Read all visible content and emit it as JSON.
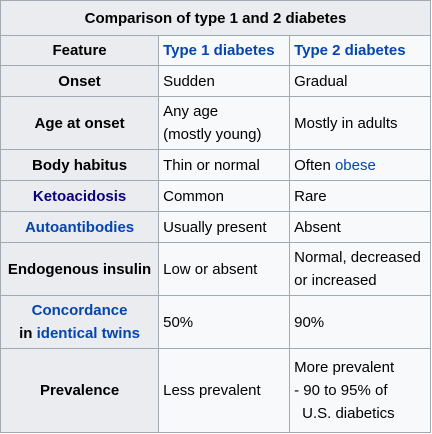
{
  "table": {
    "title": "Comparison of type 1 and 2 diabetes",
    "headers": [
      "Feature",
      "Type 1 diabetes",
      "Type 2 diabetes"
    ],
    "rows": {
      "onset": {
        "feature": "Onset",
        "type1": "Sudden",
        "type2": "Gradual"
      },
      "age": {
        "feature": "Age at onset",
        "type1_line1": "Any age",
        "type1_line2": "(mostly young)",
        "type2": "Mostly in adults"
      },
      "habitus": {
        "feature": "Body habitus",
        "type1": "Thin or normal",
        "type2_text": "Often ",
        "type2_link": "obese"
      },
      "keto": {
        "feature": "Ketoacidosis",
        "type1": "Common",
        "type2": "Rare"
      },
      "auto": {
        "feature": "Autoantibodies",
        "type1": "Usually present",
        "type2": "Absent"
      },
      "insulin": {
        "feature": "Endogenous insulin",
        "type1": "Low or absent",
        "type2_line1": "Normal, decreased",
        "type2_line2": "or increased"
      },
      "concordance": {
        "feature_line1": "Concordance",
        "feature_line2_prefix": "in ",
        "feature_line2_link": "identical twins",
        "type1": "50%",
        "type2": "90%"
      },
      "prevalence": {
        "feature": "Prevalence",
        "type1": "Less prevalent",
        "type2_line1": "More prevalent",
        "type2_line2": "- 90 to 95% of",
        "type2_line3": "U.S. diabetics"
      }
    }
  }
}
